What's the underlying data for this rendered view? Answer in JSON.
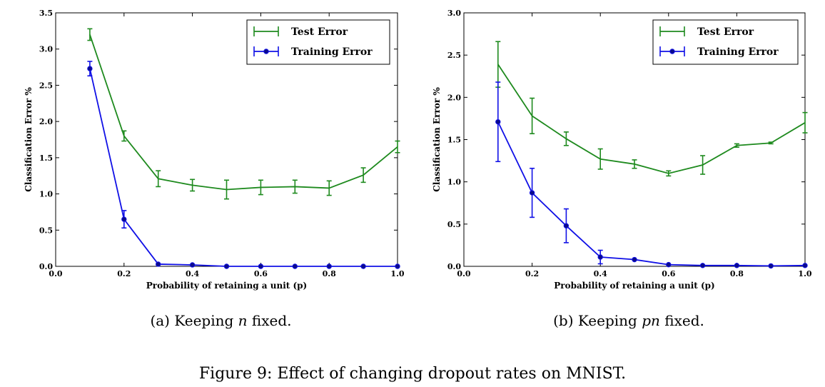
{
  "figure_caption": "Figure 9: Effect of changing dropout rates on MNIST.",
  "colors": {
    "test": "#1e8a1e",
    "training": "#1010e6"
  },
  "chart_data": [
    {
      "type": "line",
      "caption": {
        "prefix": "(a) Keeping ",
        "italic": "n",
        "suffix": " fixed."
      },
      "xlabel": "Probability of retaining a unit (p)",
      "ylabel": "Classification Error %",
      "xlim": [
        0.0,
        1.0
      ],
      "ylim": [
        0.0,
        3.5
      ],
      "xticks": [
        "0.0",
        "0.2",
        "0.4",
        "0.6",
        "0.8",
        "1.0"
      ],
      "yticks": [
        "0.0",
        "0.5",
        "1.0",
        "1.5",
        "2.0",
        "2.5",
        "3.0",
        "3.5"
      ],
      "legend_position": "top-right",
      "x": [
        0.1,
        0.2,
        0.3,
        0.4,
        0.5,
        0.6,
        0.7,
        0.8,
        0.9,
        1.0
      ],
      "series": [
        {
          "name": "Test Error",
          "color": "#1e8a1e",
          "marker": "none",
          "values": [
            3.2,
            1.8,
            1.21,
            1.12,
            1.06,
            1.09,
            1.1,
            1.08,
            1.26,
            1.65
          ],
          "errors": [
            0.08,
            0.07,
            0.11,
            0.08,
            0.13,
            0.1,
            0.09,
            0.1,
            0.1,
            0.08
          ]
        },
        {
          "name": "Training Error",
          "color": "#1010e6",
          "marker": "circle",
          "values": [
            2.73,
            0.65,
            0.03,
            0.02,
            0.0,
            0.0,
            0.0,
            0.0,
            0.0,
            0.0
          ],
          "errors": [
            0.1,
            0.12,
            0.0,
            0.0,
            0.0,
            0.0,
            0.0,
            0.0,
            0.0,
            0.0
          ]
        }
      ]
    },
    {
      "type": "line",
      "caption": {
        "prefix": "(b) Keeping ",
        "italic": "pn",
        "suffix": " fixed."
      },
      "xlabel": "Probability of retaining a unit (p)",
      "ylabel": "Classification Error %",
      "xlim": [
        0.0,
        1.0
      ],
      "ylim": [
        0.0,
        3.0
      ],
      "xticks": [
        "0.0",
        "0.2",
        "0.4",
        "0.6",
        "0.8",
        "1.0"
      ],
      "yticks": [
        "0.0",
        "0.5",
        "1.0",
        "1.5",
        "2.0",
        "2.5",
        "3.0"
      ],
      "legend_position": "top-right",
      "x": [
        0.1,
        0.2,
        0.3,
        0.4,
        0.5,
        0.6,
        0.7,
        0.8,
        0.9,
        1.0
      ],
      "series": [
        {
          "name": "Test Error",
          "color": "#1e8a1e",
          "marker": "none",
          "values": [
            2.39,
            1.78,
            1.51,
            1.27,
            1.21,
            1.1,
            1.2,
            1.43,
            1.46,
            1.7
          ],
          "errors": [
            0.27,
            0.21,
            0.08,
            0.12,
            0.05,
            0.03,
            0.11,
            0.02,
            0.01,
            0.12
          ]
        },
        {
          "name": "Training Error",
          "color": "#1010e6",
          "marker": "circle",
          "values": [
            1.71,
            0.87,
            0.48,
            0.11,
            0.08,
            0.02,
            0.01,
            0.01,
            0.005,
            0.01
          ],
          "errors": [
            0.47,
            0.29,
            0.2,
            0.08,
            0.0,
            0.0,
            0.0,
            0.0,
            0.0,
            0.0
          ]
        }
      ]
    }
  ]
}
